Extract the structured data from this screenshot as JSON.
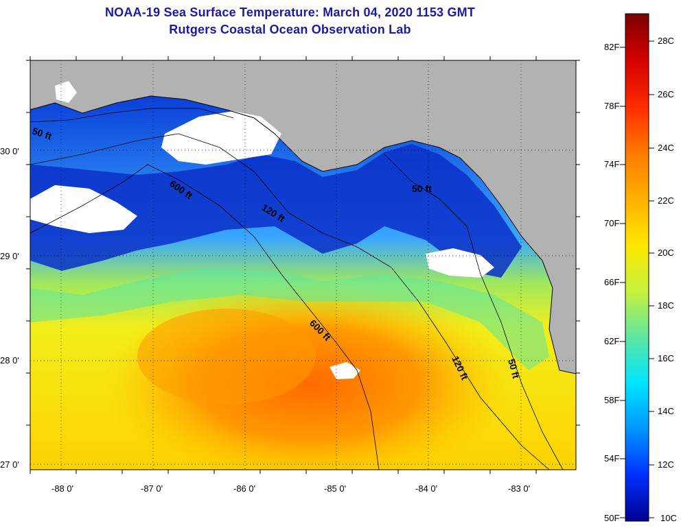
{
  "title": {
    "line1": "NOAA-19 Sea Surface Temperature:  March 04, 2020 1153 GMT",
    "line2": "Rutgers Coastal Ocean Observation Lab"
  },
  "map": {
    "x_ticks": [
      "-88 0'",
      "-87 0'",
      "-86 0'",
      "-85 0'",
      "-84 0'",
      "-83 0'"
    ],
    "y_ticks": [
      "30 0'",
      "29 0'",
      "28 0'",
      "27 0'"
    ],
    "contour_labels": [
      "50 ft",
      "600 ft",
      "120 ft",
      "50 ft",
      "600 ft",
      "120 ft",
      "50 ft"
    ]
  },
  "colorbar": {
    "fahrenheit": [
      "82F",
      "78F",
      "74F",
      "70F",
      "66F",
      "62F",
      "58F",
      "54F",
      "50F"
    ],
    "celsius": [
      "28C",
      "26C",
      "24C",
      "22C",
      "20C",
      "18C",
      "16C",
      "14C",
      "12C",
      "10C"
    ],
    "colors": [
      "#7a0000",
      "#d40000",
      "#ff2a00",
      "#ff7a00",
      "#ffb000",
      "#ffe600",
      "#c8f23a",
      "#5fe6a0",
      "#00e6ff",
      "#0096ff",
      "#0030ff",
      "#00008f"
    ]
  },
  "palette": {
    "land": "#b2b2b2",
    "cloud": "#ffffff",
    "coast": "#000000"
  }
}
